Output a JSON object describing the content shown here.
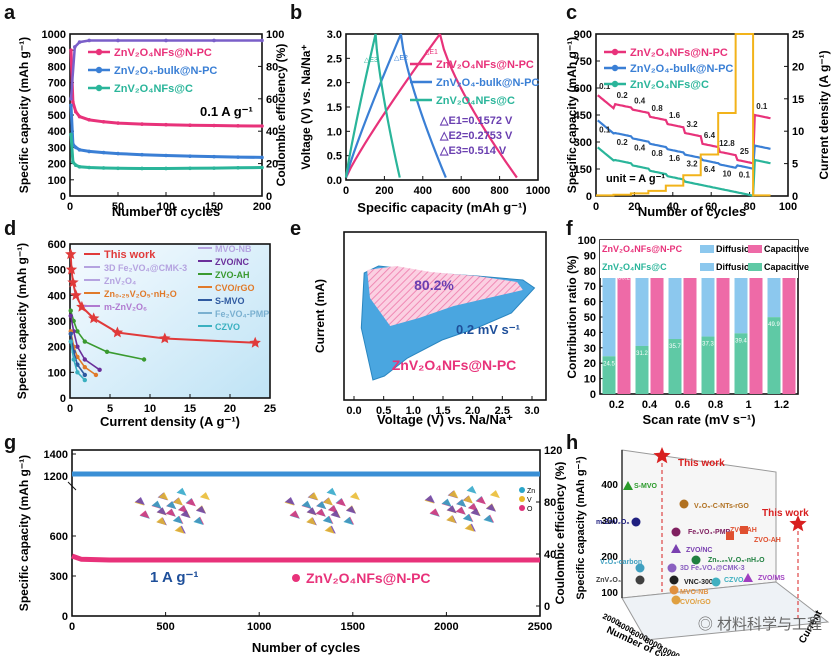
{
  "panel_labels": [
    "a",
    "b",
    "c",
    "d",
    "e",
    "f",
    "g",
    "h"
  ],
  "watermark": "材料科学与工程",
  "chart_data": [
    {
      "id": "a",
      "type": "line",
      "xlabel": "Number of cycles",
      "ylabel": "Specific capacity (mAh g⁻¹)",
      "y2label": "Coulombic efficiency (%)",
      "xlim": [
        0,
        200
      ],
      "ylim": [
        0,
        1000
      ],
      "y2lim": [
        0,
        100
      ],
      "xticks": [
        "0",
        "50",
        "100",
        "150",
        "200"
      ],
      "yticks": [
        "0",
        "100",
        "200",
        "300",
        "400",
        "500",
        "600",
        "700",
        "800",
        "900",
        "1000"
      ],
      "y2ticks": [
        "0",
        "20",
        "40",
        "60",
        "80",
        "100"
      ],
      "annotation": "0.1 A g⁻¹",
      "series": [
        {
          "name": "ZnV₂O₄NFs@N-PC",
          "color": "#e8327a",
          "x": [
            1,
            3,
            6,
            10,
            20,
            35,
            50,
            75,
            100,
            125,
            150,
            175,
            200
          ],
          "values": [
            900,
            580,
            520,
            490,
            470,
            458,
            450,
            444,
            440,
            437,
            435,
            433,
            432
          ]
        },
        {
          "name": "ZnV₂O₄-bulk@N-PC",
          "color": "#3a7fd5",
          "x": [
            1,
            3,
            6,
            10,
            20,
            35,
            50,
            75,
            100,
            125,
            150,
            175,
            200
          ],
          "values": [
            560,
            320,
            300,
            285,
            275,
            268,
            262,
            255,
            250,
            246,
            243,
            240,
            238
          ]
        },
        {
          "name": "ZnV₂O₄NFs@C",
          "color": "#2ab59a",
          "x": [
            1,
            3,
            6,
            10,
            20,
            35,
            50,
            75,
            100,
            125,
            150,
            175,
            200
          ],
          "values": [
            380,
            210,
            190,
            180,
            176,
            173,
            171,
            170,
            170,
            171,
            172,
            174,
            176
          ]
        },
        {
          "name": "CE",
          "color": "#7a5fc9",
          "axis": "y2",
          "x": [
            1,
            5,
            10,
            20,
            50,
            100,
            150,
            200
          ],
          "values": [
            60,
            92,
            95,
            96,
            96,
            96,
            96,
            96
          ]
        }
      ]
    },
    {
      "id": "b",
      "type": "line",
      "xlabel": "Specific capacity (mAh g⁻¹)",
      "ylabel": "Voltage (V) vs. Na/Na⁺",
      "xlim": [
        0,
        1000
      ],
      "ylim": [
        0,
        3.0
      ],
      "xticks": [
        "0",
        "200",
        "400",
        "600",
        "800",
        "1000"
      ],
      "yticks": [
        "0.0",
        "0.5",
        "1.0",
        "1.5",
        "2.0",
        "2.5",
        "3.0"
      ],
      "energy_labels": [
        "△E1=0.1572 V",
        "△E2=0.2753 V",
        "△E3=0.514 V"
      ],
      "gap_labels": [
        "△E1",
        "△E2",
        "△E3"
      ],
      "series": [
        {
          "name": "ZnV₂O₄NFs@N-PC",
          "color": "#e8327a",
          "capacity": 890
        },
        {
          "name": "ZnV₂O₄-bulk@N-PC",
          "color": "#3a7fd5",
          "capacity": 520
        },
        {
          "name": "ZnV₂O₄NFs@C",
          "color": "#2ab59a",
          "capacity": 280
        }
      ]
    },
    {
      "id": "c",
      "type": "line",
      "xlabel": "Number of cycles",
      "ylabel": "Specific capacity (mAh g⁻¹)",
      "y2label": "Current density (A g⁻¹)",
      "xlim": [
        0,
        110
      ],
      "ylim": [
        0,
        900
      ],
      "y2lim": [
        0,
        25
      ],
      "xticks": [
        "0",
        "20",
        "40",
        "60",
        "80",
        "100"
      ],
      "yticks": [
        "0",
        "150",
        "300",
        "450",
        "600",
        "750",
        "900"
      ],
      "y2ticks": [
        "0",
        "5",
        "10",
        "15",
        "20",
        "25"
      ],
      "unit_label": "unit = A g⁻¹",
      "rates": [
        "0.1",
        "0.2",
        "0.4",
        "0.8",
        "1.6",
        "3.2",
        "6.4",
        "12.8",
        "25",
        "0.1"
      ],
      "rates_bulk": [
        "0.1",
        "0.2",
        "0.4",
        "0.8",
        "1.6",
        "3.2",
        "6.4",
        "10",
        "0.1"
      ],
      "series": [
        {
          "name": "ZnV₂O₄NFs@N-PC",
          "color": "#e8327a",
          "values": [
            560,
            510,
            480,
            440,
            400,
            350,
            290,
            245,
            200,
            450
          ]
        },
        {
          "name": "ZnV₂O₄-bulk@N-PC",
          "color": "#3a7fd5",
          "values": [
            420,
            350,
            320,
            290,
            260,
            230,
            200,
            175,
            170,
            280
          ]
        },
        {
          "name": "ZnV₂O₄NFs@C",
          "color": "#2ab59a",
          "values": [
            270,
            200,
            170,
            140,
            110,
            80,
            60,
            40,
            20,
            200
          ]
        }
      ]
    },
    {
      "id": "d",
      "type": "line",
      "xlabel": "Current density (A g⁻¹)",
      "ylabel": "Specific capacity (mAh g⁻¹)",
      "xlim": [
        0,
        27
      ],
      "ylim": [
        0,
        600
      ],
      "xticks": [
        "0",
        "5",
        "10",
        "15",
        "20",
        "25"
      ],
      "yticks": [
        "0",
        "100",
        "200",
        "300",
        "400",
        "500",
        "600"
      ],
      "legend_left": [
        "This work",
        "3D Fe₂VO₄@CMK-3",
        "ZnV₂O₄",
        "Zn₀.₂₅V₂O₅·nH₂O",
        "m-ZnV₂O₆"
      ],
      "legend_left_colors": [
        "#e03a3a",
        "#b5a3e0",
        "#b5a3e0",
        "#e07a2a",
        "#b07ad0"
      ],
      "legend_right": [
        "MVO-NB",
        "ZVO/NC",
        "ZVO-AH",
        "CVO/rGO",
        "S-MVO",
        "Fe₂VO₄-PMP",
        "CZVO"
      ],
      "legend_right_colors": [
        "#b5a3e0",
        "#6a2f9a",
        "#3a9a2f",
        "#e07a2a",
        "#2f5aa0",
        "#7ab0d0",
        "#3ab0c0"
      ],
      "series": [
        {
          "name": "This work",
          "color": "#e03a3a",
          "x": [
            0.1,
            0.2,
            0.4,
            0.8,
            1.6,
            3.2,
            6.4,
            12.8,
            25
          ],
          "values": [
            560,
            500,
            450,
            400,
            355,
            310,
            255,
            232,
            215
          ]
        },
        {
          "name": "ZVO-AH",
          "color": "#3a9a2f",
          "x": [
            0.1,
            0.5,
            1,
            2,
            5,
            10
          ],
          "values": [
            340,
            300,
            260,
            220,
            180,
            150
          ]
        },
        {
          "name": "ZVO/NC",
          "color": "#6a2f9a",
          "x": [
            0.1,
            0.5,
            1,
            2,
            4
          ],
          "values": [
            320,
            260,
            200,
            150,
            110
          ]
        },
        {
          "name": "Zn₀.₂₅V₂O₅·nH₂O",
          "color": "#e07a2a",
          "x": [
            0.1,
            0.5,
            1,
            2,
            3.5
          ],
          "values": [
            260,
            200,
            160,
            120,
            90
          ]
        },
        {
          "name": "S-MVO",
          "color": "#2f5aa0",
          "x": [
            0.1,
            0.5,
            1,
            2
          ],
          "values": [
            250,
            180,
            130,
            90
          ]
        },
        {
          "name": "CZVO",
          "color": "#3ab0c0",
          "x": [
            0.1,
            0.5,
            1,
            2
          ],
          "values": [
            220,
            150,
            100,
            70
          ]
        }
      ]
    },
    {
      "id": "e",
      "type": "area",
      "xlabel": "Voltage (V) vs. Na/Na⁺",
      "ylabel": "Current (mA)",
      "xlim": [
        -0.3,
        3.2
      ],
      "xticks": [
        "0.0",
        "0.5",
        "1.0",
        "1.5",
        "2.0",
        "2.5",
        "3.0"
      ],
      "annotation": "80.2%",
      "rate_label": "0.2 mV s⁻¹",
      "sample_label": "ZnV₂O₄NFs@N-PC"
    },
    {
      "id": "f",
      "type": "bar",
      "xlabel": "Scan rate (mV s⁻¹)",
      "ylabel": "Contribution ratio (%)",
      "ylim": [
        0,
        100
      ],
      "yticks": [
        "0",
        "10",
        "20",
        "30",
        "40",
        "50",
        "60",
        "70",
        "80",
        "90",
        "100"
      ],
      "categories": [
        "0.2",
        "0.4",
        "0.6",
        "0.8",
        "1",
        "1.2"
      ],
      "legend_rows": [
        {
          "sample": "ZnV₂O₄NFs@N-PC",
          "items": [
            "Diffusion",
            "Capacitive"
          ]
        },
        {
          "sample": "ZnV₂O₄NFs@C",
          "items": [
            "Diffusion",
            "Capacitive"
          ]
        }
      ],
      "series": [
        {
          "name": "Capacitive",
          "color": "#ee6aa7",
          "values": [
            80.2,
            84.2,
            88.0,
            90.6,
            94.1,
            96.7
          ]
        },
        {
          "name": "Capacitive",
          "color": "#5fc9a5",
          "values": [
            24.5,
            31.2,
            35.7,
            37.3,
            39.4,
            49.9
          ]
        }
      ],
      "diffusion_color": "#8cc8ee"
    },
    {
      "id": "g",
      "type": "line",
      "xlabel": "Number of cycles",
      "ylabel": "Specific capacity (mAh g⁻¹)",
      "y2label": "Coulombic efficiency (%)",
      "xlim": [
        0,
        2500
      ],
      "xticks": [
        "0",
        "500",
        "1000",
        "1500",
        "2000",
        "2500"
      ],
      "yticks": [
        "0",
        "300",
        "600",
        "1200",
        "1400"
      ],
      "y2ticks": [
        "0",
        "40",
        "80",
        "120"
      ],
      "annotation": "1 A g⁻¹",
      "legend": "ZnV₂O₄NFs@N-PC",
      "atom_legend": [
        "Zn",
        "V",
        "O"
      ],
      "series": [
        {
          "name": "ZnV₂O₄NFs@N-PC",
          "color": "#e8327a",
          "x": [
            0,
            50,
            200,
            500,
            1000,
            1500,
            2000,
            2500
          ],
          "values": [
            450,
            425,
            420,
            420,
            420,
            420,
            420,
            420
          ]
        },
        {
          "name": "CE",
          "color": "#3a8fd5",
          "x": [
            0,
            50,
            200,
            500,
            1000,
            1500,
            2000,
            2500
          ],
          "values": [
            100,
            100,
            100,
            100,
            100,
            100,
            100,
            100
          ]
        }
      ]
    },
    {
      "id": "h",
      "type": "scatter",
      "zlabel": "Specific capacity (mAh g⁻¹)",
      "xlabel": "Number of cycles",
      "ylabel": "Current",
      "zticks": [
        "100",
        "200",
        "300",
        "400"
      ],
      "xticks": [
        "2000",
        "4000",
        "6000",
        "8000",
        "10000"
      ],
      "points": [
        {
          "label": "This work",
          "marker": "star",
          "color": "#d82020"
        },
        {
          "label": "This work",
          "marker": "star",
          "color": "#d82020"
        },
        {
          "label": "S-MVO",
          "marker": "triangle",
          "color": "#2a9a2a"
        },
        {
          "label": "ZVO-AH",
          "marker": "cube",
          "color": "#e05030"
        },
        {
          "label": "V₂O₅-C-NTs-rGO",
          "marker": "sphere",
          "color": "#b07020"
        },
        {
          "label": "m-ZnV₂O₆",
          "marker": "sphere",
          "color": "#202080"
        },
        {
          "label": "Fe₂VO₄-PMP",
          "marker": "sphere",
          "color": "#802060"
        },
        {
          "label": "ZVO-AH",
          "marker": "cube",
          "color": "#e05030"
        },
        {
          "label": "ZVO/NC",
          "marker": "triangle",
          "color": "#7a40b0"
        },
        {
          "label": "Zn₀.₂₅V₂O₅-nH₂O",
          "marker": "sphere",
          "color": "#208040"
        },
        {
          "label": "V₂O₃-carbon",
          "marker": "sphere",
          "color": "#40a0c0"
        },
        {
          "label": "3D Fe₂VO₄@CMK-3",
          "marker": "sphere",
          "color": "#8a60c0"
        },
        {
          "label": "ZnV₂O₄",
          "marker": "sphere",
          "color": "#404040"
        },
        {
          "label": "VNC-300",
          "marker": "sphere",
          "color": "#202020"
        },
        {
          "label": "CZVO",
          "marker": "sphere",
          "color": "#40b0c0"
        },
        {
          "label": "ZVO/MS",
          "marker": "triangle",
          "color": "#a040c0"
        },
        {
          "label": "MVO-NB",
          "marker": "sphere",
          "color": "#e09040"
        },
        {
          "label": "CVO/rGO",
          "marker": "sphere",
          "color": "#e0a040"
        }
      ]
    }
  ]
}
